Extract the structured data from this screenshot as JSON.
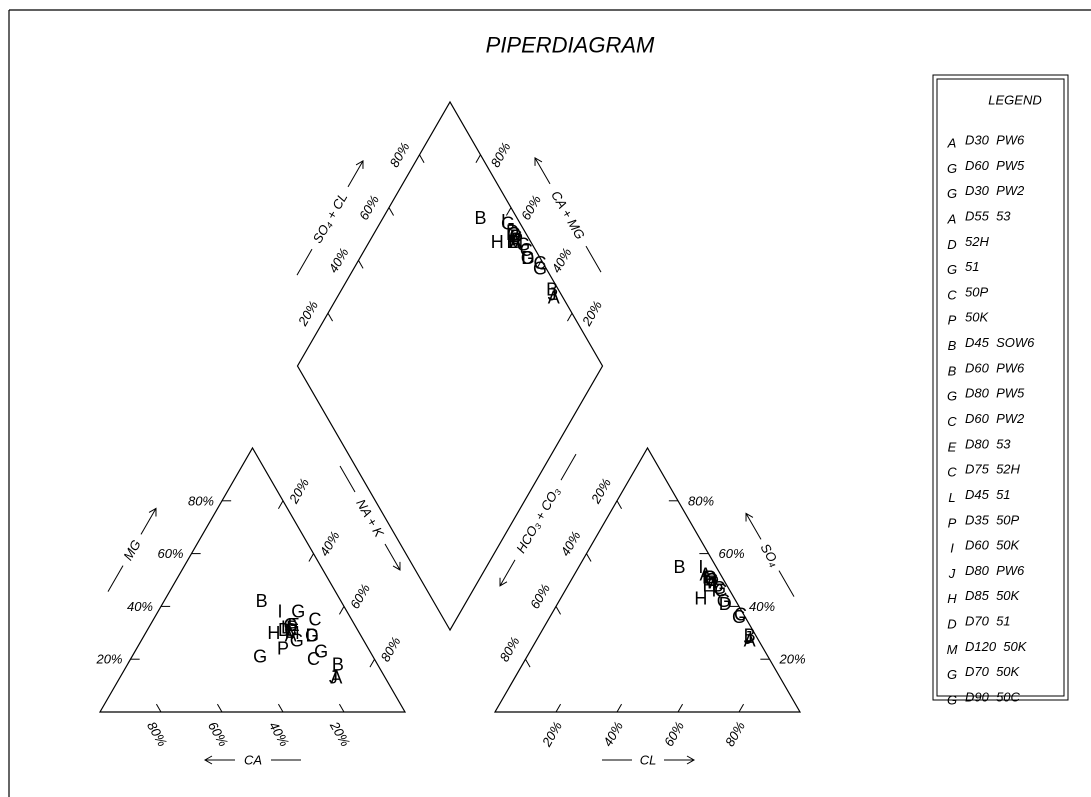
{
  "chart_data": {
    "type": "piper",
    "title": "PIPERDIAGRAM",
    "legend_title": "LEGEND",
    "axes": {
      "mg": {
        "label": "MG",
        "ticks": [
          {
            "value": 20,
            "label": "20%"
          },
          {
            "value": 40,
            "label": "40%"
          },
          {
            "value": 60,
            "label": "60%"
          },
          {
            "value": 80,
            "label": "80%"
          }
        ]
      },
      "ca": {
        "label": "CA",
        "ticks": [
          {
            "value": 20,
            "label": "20%"
          },
          {
            "value": 40,
            "label": "40%"
          },
          {
            "value": 60,
            "label": "60%"
          },
          {
            "value": 80,
            "label": "80%"
          }
        ]
      },
      "na_k": {
        "label": "NA + K",
        "ticks": [
          {
            "value": 20,
            "label": "20%"
          },
          {
            "value": 40,
            "label": "40%"
          },
          {
            "value": 60,
            "label": "60%"
          },
          {
            "value": 80,
            "label": "80%"
          }
        ]
      },
      "hco3": {
        "label": "HCO₃ + CO₃",
        "ticks": [
          {
            "value": 20,
            "label": "20%"
          },
          {
            "value": 40,
            "label": "40%"
          },
          {
            "value": 60,
            "label": "60%"
          },
          {
            "value": 80,
            "label": "80%"
          }
        ]
      },
      "cl": {
        "label": "CL",
        "ticks": [
          {
            "value": 20,
            "label": "20%"
          },
          {
            "value": 40,
            "label": "40%"
          },
          {
            "value": 60,
            "label": "60%"
          },
          {
            "value": 80,
            "label": "80%"
          }
        ]
      },
      "so4": {
        "label": "SO₄",
        "ticks": [
          {
            "value": 20,
            "label": "20%"
          },
          {
            "value": 40,
            "label": "40%"
          },
          {
            "value": 60,
            "label": "60%"
          },
          {
            "value": 80,
            "label": "80%"
          }
        ]
      },
      "so4_cl": {
        "label": "SO₄ + CL",
        "ticks": [
          {
            "value": 20,
            "label": "20%"
          },
          {
            "value": 40,
            "label": "40%"
          },
          {
            "value": 60,
            "label": "60%"
          },
          {
            "value": 80,
            "label": "80%"
          }
        ]
      },
      "ca_mg": {
        "label": "CA + MG",
        "ticks": [
          {
            "value": 20,
            "label": "20%"
          },
          {
            "value": 40,
            "label": "40%"
          },
          {
            "value": 60,
            "label": "60%"
          },
          {
            "value": 80,
            "label": "80%"
          }
        ]
      }
    },
    "samples": [
      {
        "letter": "A",
        "name": "D30  PW6",
        "color": "#2e6fc6",
        "ca": 16,
        "mg": 13,
        "na_k": 71,
        "hco3": 3,
        "so4": 27,
        "cl": 70
      },
      {
        "letter": "G",
        "name": "D60  PW5",
        "color": "#c8961e",
        "ca": 37,
        "mg": 21,
        "na_k": 42,
        "hco3": 4,
        "so4": 50,
        "cl": 46
      },
      {
        "letter": "G",
        "name": "D30  PW2",
        "color": "#c8961e",
        "ca": 16,
        "mg": 23,
        "na_k": 61,
        "hco3": 2,
        "so4": 36,
        "cl": 62
      },
      {
        "letter": "A",
        "name": "D55  53",
        "color": "#2ec82e",
        "ca": 23,
        "mg": 29,
        "na_k": 48,
        "hco3": 5,
        "so4": 52,
        "cl": 43
      },
      {
        "letter": "D",
        "name": "52H",
        "color": "#c8961e",
        "ca": 16,
        "mg": 29,
        "na_k": 55,
        "hco3": 4,
        "so4": 41,
        "cl": 55
      },
      {
        "letter": "G",
        "name": "51",
        "color": "#a0c828",
        "ca": 16,
        "mg": 38,
        "na_k": 46,
        "hco3": 4,
        "so4": 50,
        "cl": 46
      },
      {
        "letter": "C",
        "name": "50P",
        "color": "#c828c8",
        "ca": 20,
        "mg": 20,
        "na_k": 60,
        "hco3": 1,
        "so4": 37,
        "cl": 62
      },
      {
        "letter": "P",
        "name": "50K",
        "color": "#2850c8",
        "ca": 21,
        "mg": 32,
        "na_k": 47,
        "hco3": 4,
        "so4": 49,
        "cl": 47
      },
      {
        "letter": "B",
        "name": "D45  SOW6",
        "color": "#a028c0",
        "ca": 26,
        "mg": 42,
        "na_k": 32,
        "hco3": 12,
        "so4": 55,
        "cl": 33
      },
      {
        "letter": "B",
        "name": "D60  PW6",
        "color": "#28c828",
        "ca": 13,
        "mg": 18,
        "na_k": 69,
        "hco3": 2,
        "so4": 29,
        "cl": 69
      },
      {
        "letter": "G",
        "name": "D80  PW5",
        "color": "#4028c8",
        "ca": 21,
        "mg": 33,
        "na_k": 46,
        "hco3": 4,
        "so4": 51,
        "cl": 45
      },
      {
        "letter": "C",
        "name": "D60  PW2",
        "color": "#5028a0",
        "ca": 22,
        "mg": 31,
        "na_k": 47,
        "hco3": 4,
        "so4": 50,
        "cl": 46
      },
      {
        "letter": "E",
        "name": "D80  53",
        "color": "#28a040",
        "ca": 20,
        "mg": 33,
        "na_k": 47,
        "hco3": 6,
        "so4": 48,
        "cl": 46
      },
      {
        "letter": "C",
        "name": "D75  52H",
        "color": "#28b0c8",
        "ca": 12,
        "mg": 35,
        "na_k": 53,
        "hco3": 3,
        "so4": 46,
        "cl": 51
      },
      {
        "letter": "L",
        "name": "D45  51",
        "color": "#a028c8",
        "ca": 23,
        "mg": 32,
        "na_k": 45,
        "hco3": 5,
        "so4": 51,
        "cl": 44
      },
      {
        "letter": "P",
        "name": "D35  50P",
        "color": "#c84020",
        "ca": 28,
        "mg": 24,
        "na_k": 48,
        "hco3": 4,
        "so4": 46,
        "cl": 50
      },
      {
        "letter": "I",
        "name": "D60  50K",
        "color": "#28a0d0",
        "ca": 22,
        "mg": 38,
        "na_k": 40,
        "hco3": 5,
        "so4": 55,
        "cl": 40
      },
      {
        "letter": "J",
        "name": "D80  PW6",
        "color": "#2040b0",
        "ca": 17,
        "mg": 13,
        "na_k": 70,
        "hco3": 3,
        "so4": 28,
        "cl": 69
      },
      {
        "letter": "H",
        "name": "D85  50K",
        "color": "#28c040",
        "ca": 28,
        "mg": 30,
        "na_k": 42,
        "hco3": 11,
        "so4": 43,
        "cl": 46
      },
      {
        "letter": "D",
        "name": "D70  51",
        "color": "#6028c8",
        "ca": 24,
        "mg": 31,
        "na_k": 45,
        "hco3": 4,
        "so4": 51,
        "cl": 45
      },
      {
        "letter": "M",
        "name": "D120  50K",
        "color": "#28c080",
        "ca": 22,
        "mg": 30,
        "na_k": 48,
        "hco3": 5,
        "so4": 49,
        "cl": 46
      },
      {
        "letter": "G",
        "name": "D70  50K",
        "color": "#2090c8",
        "ca": 22,
        "mg": 27,
        "na_k": 51,
        "hco3": 3,
        "so4": 47,
        "cl": 50
      },
      {
        "letter": "G",
        "name": "D90  50C",
        "color": "#c8961e",
        "ca": 16,
        "mg": 29,
        "na_k": 55,
        "hco3": 4,
        "so4": 42,
        "cl": 54
      }
    ]
  }
}
